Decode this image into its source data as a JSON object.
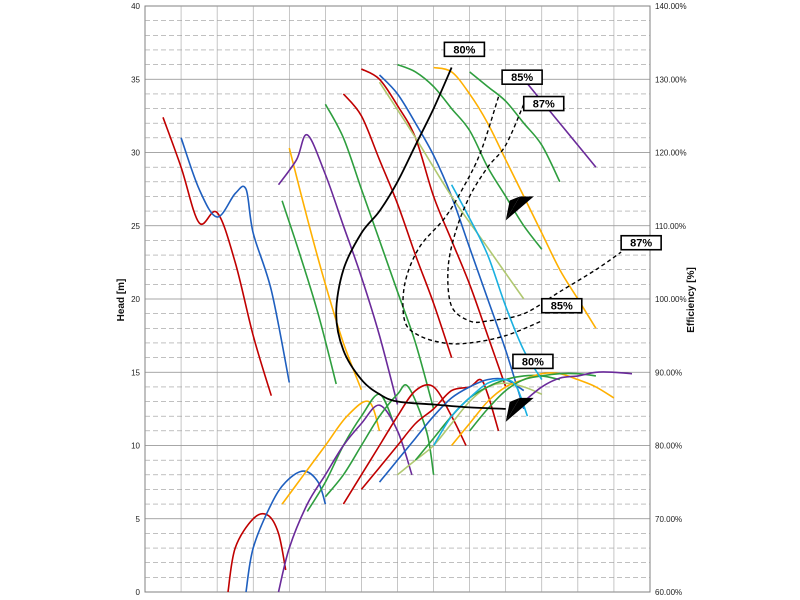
{
  "chart_data": {
    "type": "line",
    "title": "",
    "xlabel": "",
    "ylabel": "Head [m]",
    "y2label": "Efficiency [%]",
    "ylim": [
      0,
      40
    ],
    "y2lim": [
      60,
      140
    ],
    "xlim": [
      0,
      14
    ],
    "grid": true,
    "yticks": [
      "0",
      "5",
      "10",
      "15",
      "20",
      "25",
      "30",
      "35",
      "40"
    ],
    "y2ticks": [
      "60.00%",
      "70.00%",
      "80.00%",
      "90.00%",
      "100.00%",
      "110.00%",
      "120.00%",
      "130.00%",
      "140.00%"
    ],
    "colors": {
      "red": "#c00000",
      "blue": "#1f5fbf",
      "orange": "#ffb000",
      "green": "#2e9e3e",
      "purple": "#6a2a9a",
      "lightgreen": "#b0c870",
      "cyan": "#19b0e0"
    },
    "series": [
      {
        "color": "red",
        "head": [
          [
            0.5,
            32.4
          ],
          [
            1.0,
            29
          ],
          [
            1.5,
            25.2
          ],
          [
            2.0,
            25.9
          ],
          [
            2.5,
            22.5
          ],
          [
            3.0,
            17.5
          ],
          [
            3.5,
            13.4
          ]
        ],
        "efficiency": [
          [
            2.3,
            60
          ],
          [
            2.5,
            66
          ],
          [
            3.0,
            70
          ],
          [
            3.4,
            70.5
          ],
          [
            3.7,
            68
          ],
          [
            3.9,
            63
          ]
        ]
      },
      {
        "color": "blue",
        "head": [
          [
            1.0,
            31
          ],
          [
            1.5,
            27.5
          ],
          [
            2.0,
            25.6
          ],
          [
            2.5,
            27.2
          ],
          [
            2.8,
            27.5
          ],
          [
            3.0,
            24.5
          ],
          [
            3.5,
            20.6
          ],
          [
            4.0,
            14.3
          ]
        ],
        "efficiency": [
          [
            2.8,
            60
          ],
          [
            3.0,
            66
          ],
          [
            3.5,
            72
          ],
          [
            3.9,
            75
          ],
          [
            4.4,
            76.5
          ],
          [
            4.8,
            75
          ],
          [
            5.0,
            72
          ]
        ]
      },
      {
        "color": "orange",
        "head": [
          [
            4.0,
            30.3
          ],
          [
            4.5,
            25.5
          ],
          [
            5.0,
            21
          ],
          [
            5.5,
            17
          ],
          [
            6.0,
            13.8
          ]
        ],
        "efficiency": [
          [
            3.8,
            72
          ],
          [
            4.4,
            76
          ],
          [
            5.0,
            80
          ],
          [
            5.6,
            84
          ],
          [
            6.2,
            86
          ],
          [
            6.5,
            82
          ]
        ]
      },
      {
        "color": "green",
        "head": [
          [
            3.8,
            26.7
          ],
          [
            4.3,
            23
          ],
          [
            4.8,
            19
          ],
          [
            5.3,
            14.2
          ]
        ],
        "efficiency": [
          [
            4.5,
            71
          ],
          [
            5.0,
            75
          ],
          [
            5.5,
            80
          ],
          [
            6.0,
            84
          ],
          [
            6.5,
            87
          ],
          [
            6.9,
            83
          ]
        ]
      },
      {
        "color": "purple",
        "head": [
          [
            3.7,
            27.8
          ],
          [
            4.2,
            29.5
          ],
          [
            4.5,
            31.2
          ],
          [
            5.0,
            28.5
          ],
          [
            5.5,
            25
          ],
          [
            6.0,
            21.5
          ],
          [
            6.5,
            17.5
          ],
          [
            7.0,
            12.8
          ]
        ],
        "efficiency": [
          [
            3.7,
            60
          ],
          [
            4.0,
            66
          ],
          [
            4.5,
            72
          ],
          [
            5.0,
            76
          ],
          [
            5.5,
            80
          ],
          [
            6.0,
            83
          ],
          [
            6.5,
            85.5
          ],
          [
            7.0,
            82
          ],
          [
            7.4,
            76
          ]
        ]
      },
      {
        "color": "green",
        "head": [
          [
            5.0,
            33.3
          ],
          [
            5.5,
            31
          ],
          [
            6.0,
            27.5
          ],
          [
            6.5,
            24
          ],
          [
            7.0,
            20.5
          ],
          [
            7.5,
            17
          ],
          [
            8.0,
            12.5
          ]
        ],
        "efficiency": [
          [
            5.0,
            73
          ],
          [
            5.5,
            76
          ],
          [
            6.0,
            80
          ],
          [
            6.5,
            84
          ],
          [
            7.0,
            87
          ],
          [
            7.3,
            88
          ],
          [
            7.8,
            82
          ],
          [
            8.0,
            76
          ]
        ]
      },
      {
        "color": "red",
        "head": [
          [
            5.5,
            34
          ],
          [
            6.0,
            32.5
          ],
          [
            6.5,
            29.5
          ],
          [
            7.0,
            26.5
          ],
          [
            7.5,
            23
          ],
          [
            8.0,
            19.7
          ],
          [
            8.5,
            16
          ]
        ],
        "efficiency": [
          [
            5.5,
            72
          ],
          [
            6.0,
            76
          ],
          [
            6.5,
            80
          ],
          [
            7.0,
            84
          ],
          [
            7.5,
            87.5
          ],
          [
            8.0,
            88
          ],
          [
            8.5,
            84
          ],
          [
            8.9,
            80
          ]
        ]
      },
      {
        "color": "red",
        "head": [
          [
            6.0,
            35.7
          ],
          [
            6.5,
            35
          ],
          [
            7.0,
            33.2
          ],
          [
            7.5,
            31
          ],
          [
            8.0,
            27
          ],
          [
            8.5,
            24
          ],
          [
            9.0,
            21
          ],
          [
            9.5,
            17.5
          ],
          [
            10.0,
            14
          ]
        ],
        "efficiency": [
          [
            6.0,
            74
          ],
          [
            6.5,
            77
          ],
          [
            7.0,
            80
          ],
          [
            7.5,
            83
          ],
          [
            8.0,
            85
          ],
          [
            8.5,
            87.5
          ],
          [
            9.0,
            88
          ],
          [
            9.3,
            89
          ],
          [
            9.5,
            87
          ],
          [
            9.8,
            82
          ]
        ]
      },
      {
        "color": "blue",
        "head": [
          [
            6.5,
            35.3
          ],
          [
            7.0,
            34
          ],
          [
            7.5,
            32
          ],
          [
            8.0,
            29.8
          ],
          [
            8.5,
            27
          ],
          [
            9.0,
            23.5
          ],
          [
            9.5,
            20
          ],
          [
            10.0,
            16.5
          ],
          [
            10.5,
            12.5
          ]
        ],
        "efficiency": [
          [
            6.5,
            75
          ],
          [
            7.0,
            78
          ],
          [
            7.5,
            81
          ],
          [
            8.0,
            84
          ],
          [
            8.5,
            86.5
          ],
          [
            9.0,
            88
          ],
          [
            9.5,
            89
          ],
          [
            10.0,
            89
          ],
          [
            10.5,
            87.5
          ]
        ]
      },
      {
        "color": "lightgreen",
        "head": [
          [
            6.5,
            34.8
          ],
          [
            7.5,
            31
          ],
          [
            8.5,
            27
          ],
          [
            9.5,
            23.5
          ],
          [
            10.5,
            20
          ]
        ],
        "efficiency": [
          [
            7.0,
            76
          ],
          [
            7.5,
            78
          ],
          [
            8.0,
            80
          ],
          [
            8.5,
            83
          ],
          [
            9.0,
            86
          ],
          [
            9.5,
            88
          ],
          [
            10.0,
            88.5
          ],
          [
            10.5,
            88
          ],
          [
            11.0,
            87
          ]
        ]
      },
      {
        "color": "green",
        "head": [
          [
            7.0,
            36
          ],
          [
            7.5,
            35.5
          ],
          [
            8.0,
            34.5
          ],
          [
            8.5,
            33
          ],
          [
            9.0,
            31.5
          ],
          [
            9.5,
            29
          ],
          [
            10.0,
            27
          ],
          [
            10.5,
            25
          ],
          [
            11.0,
            23.4
          ]
        ],
        "efficiency": [
          [
            7.5,
            78
          ],
          [
            8.0,
            81
          ],
          [
            8.5,
            84
          ],
          [
            9.0,
            86.5
          ],
          [
            9.5,
            88
          ],
          [
            10.0,
            89
          ],
          [
            10.5,
            89.5
          ],
          [
            11.0,
            89.5
          ],
          [
            11.5,
            89
          ]
        ]
      },
      {
        "color": "orange",
        "head": [
          [
            8.0,
            35.8
          ],
          [
            8.5,
            35.5
          ],
          [
            9.0,
            34
          ],
          [
            9.5,
            32
          ],
          [
            10.0,
            29.5
          ],
          [
            10.5,
            27
          ],
          [
            11.0,
            24.5
          ],
          [
            11.5,
            22
          ],
          [
            12.0,
            20
          ],
          [
            12.5,
            18
          ]
        ],
        "efficiency": [
          [
            8.5,
            80
          ],
          [
            9.0,
            83
          ],
          [
            9.5,
            86
          ],
          [
            10.0,
            88
          ],
          [
            10.5,
            89
          ],
          [
            11.0,
            89.8
          ],
          [
            11.5,
            89.8
          ],
          [
            12.0,
            89
          ],
          [
            12.5,
            88
          ],
          [
            13.0,
            86.5
          ]
        ]
      },
      {
        "color": "green",
        "head": [
          [
            9.0,
            35.5
          ],
          [
            9.5,
            34.5
          ],
          [
            10.0,
            33.5
          ],
          [
            10.5,
            32
          ],
          [
            11.0,
            30.5
          ],
          [
            11.5,
            28
          ]
        ],
        "efficiency": [
          [
            9.0,
            82
          ],
          [
            9.5,
            85
          ],
          [
            10.0,
            87.5
          ],
          [
            10.5,
            89
          ],
          [
            11.0,
            89.5
          ],
          [
            11.5,
            89.8
          ],
          [
            12.0,
            89.8
          ],
          [
            12.5,
            89.5
          ]
        ]
      },
      {
        "color": "purple",
        "head": [
          [
            10.5,
            35
          ],
          [
            11.0,
            33.5
          ],
          [
            11.5,
            32
          ],
          [
            12.0,
            30.5
          ],
          [
            12.5,
            29
          ]
        ],
        "efficiency": [
          [
            10.5,
            86
          ],
          [
            11.0,
            88
          ],
          [
            11.5,
            89.2
          ],
          [
            12.0,
            89.5
          ],
          [
            12.5,
            90
          ],
          [
            13.0,
            90
          ],
          [
            13.5,
            89.8
          ]
        ]
      },
      {
        "color": "cyan",
        "head": [
          [
            8.5,
            27.8
          ],
          [
            9.0,
            25.5
          ],
          [
            9.5,
            23
          ],
          [
            10.0,
            19.5
          ],
          [
            10.5,
            16.5
          ],
          [
            11.0,
            14.5
          ]
        ],
        "efficiency": [
          [
            8.0,
            80
          ],
          [
            8.5,
            84
          ],
          [
            9.0,
            86.5
          ],
          [
            9.5,
            88.5
          ],
          [
            10.0,
            89
          ],
          [
            10.3,
            88
          ],
          [
            10.6,
            84
          ]
        ]
      }
    ],
    "iso_efficiency": [
      {
        "label": "80%",
        "style": "solid",
        "points": [
          [
            8.5,
            35.8
          ],
          [
            8.0,
            33
          ],
          [
            7.5,
            30.5
          ],
          [
            7.0,
            28
          ],
          [
            6.5,
            26
          ],
          [
            6.0,
            24.5
          ],
          [
            5.5,
            22
          ],
          [
            5.3,
            19
          ],
          [
            5.5,
            16.5
          ],
          [
            6.0,
            14.5
          ],
          [
            6.5,
            13.5
          ],
          [
            7.0,
            13
          ],
          [
            8.0,
            12.8
          ],
          [
            9.0,
            12.6
          ],
          [
            10.0,
            12.5
          ]
        ]
      },
      {
        "label": "85%",
        "style": "dashed",
        "points": [
          [
            9.8,
            33.8
          ],
          [
            9.3,
            30
          ],
          [
            8.8,
            27.5
          ],
          [
            8.3,
            25.5
          ],
          [
            7.6,
            23.5
          ],
          [
            7.2,
            21
          ],
          [
            7.2,
            18.5
          ],
          [
            7.6,
            17.5
          ],
          [
            8.3,
            17
          ],
          [
            9.0,
            17
          ],
          [
            10.0,
            17.5
          ],
          [
            11.0,
            18.5
          ]
        ]
      },
      {
        "label": "87%",
        "style": "dashed",
        "points": [
          [
            10.5,
            33.3
          ],
          [
            10.0,
            30.5
          ],
          [
            9.5,
            29
          ],
          [
            9.0,
            27
          ],
          [
            8.6,
            24.5
          ],
          [
            8.4,
            22
          ],
          [
            8.5,
            19.5
          ],
          [
            9.0,
            18.5
          ],
          [
            9.5,
            18.5
          ],
          [
            10.5,
            19
          ],
          [
            11.5,
            20.5
          ],
          [
            12.5,
            22
          ],
          [
            13.2,
            23.2
          ]
        ]
      }
    ],
    "annotations": [
      "80%",
      "85%",
      "87%",
      "87%",
      "85%",
      "80%"
    ]
  }
}
